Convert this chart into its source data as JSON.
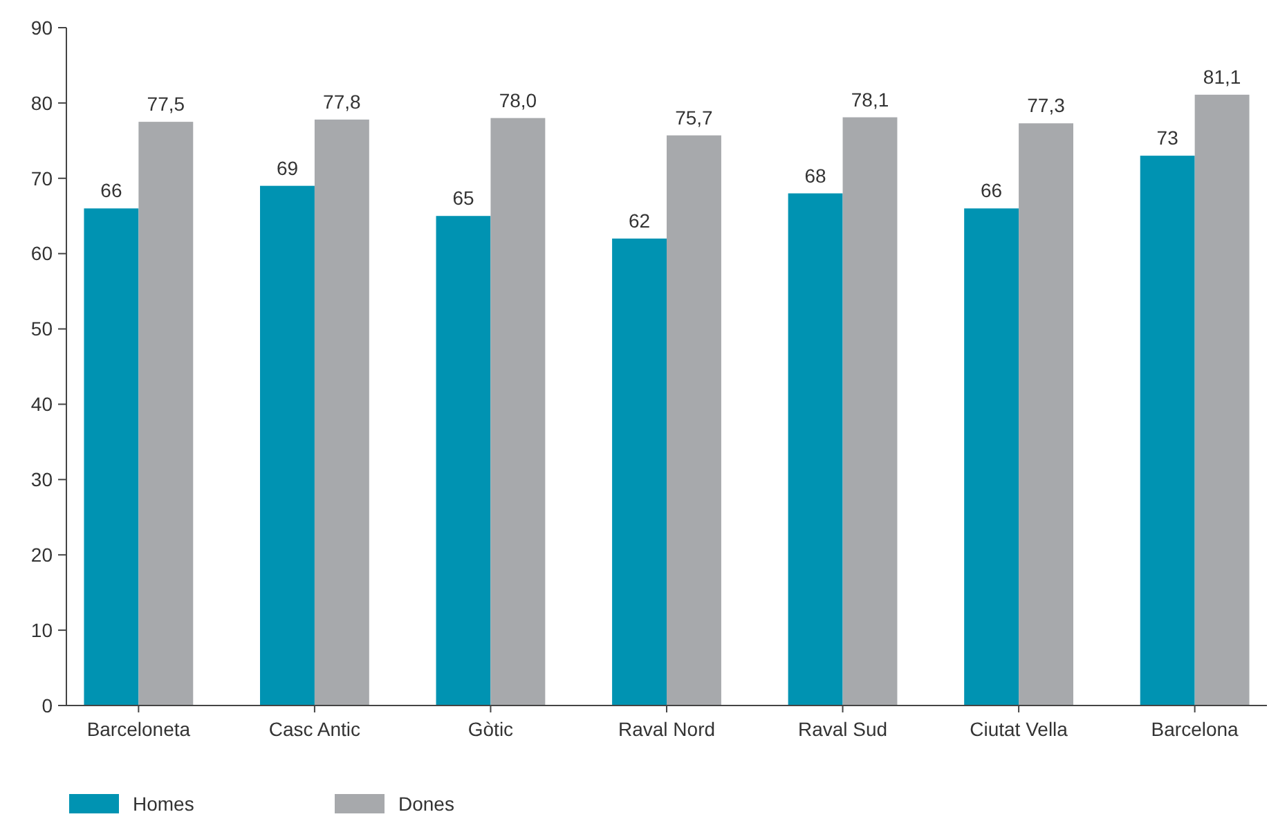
{
  "chart_data": {
    "type": "bar",
    "categories": [
      "Barceloneta",
      "Casc Antic",
      "Gòtic",
      "Raval Nord",
      "Raval Sud",
      "Ciutat Vella",
      "Barcelona"
    ],
    "series": [
      {
        "name": "Homes",
        "color": "#0093b2",
        "values": [
          66,
          69,
          65,
          62,
          68,
          66,
          73
        ],
        "value_labels": [
          "66",
          "69",
          "65",
          "62",
          "68",
          "66",
          "73"
        ]
      },
      {
        "name": "Dones",
        "color": "#a7a9ac",
        "values": [
          77.5,
          77.8,
          78.0,
          75.7,
          78.1,
          77.3,
          81.1
        ],
        "value_labels": [
          "77,5",
          "77,8",
          "78,0",
          "75,7",
          "78,1",
          "77,3",
          "81,1"
        ]
      }
    ],
    "ylim": [
      0,
      90
    ],
    "yticks": [
      0,
      10,
      20,
      30,
      40,
      50,
      60,
      70,
      80,
      90
    ],
    "grid": false,
    "legend": "bottom left"
  }
}
